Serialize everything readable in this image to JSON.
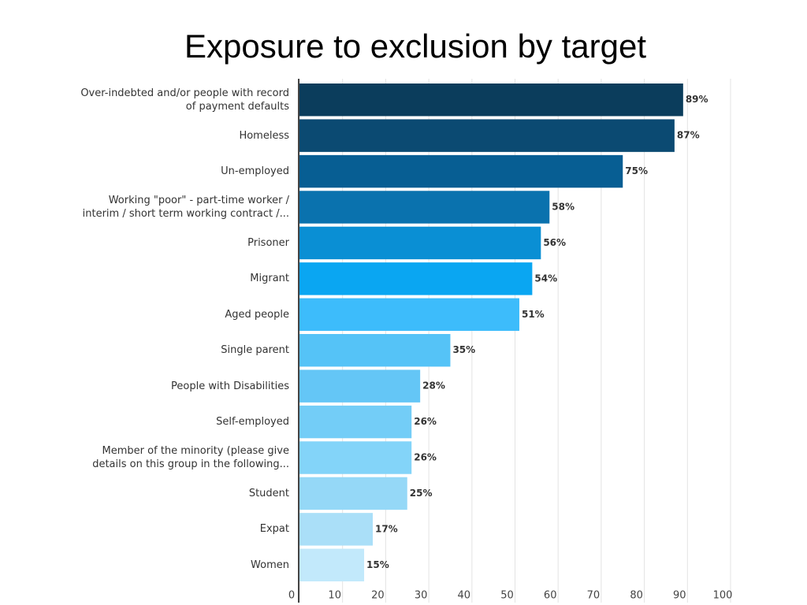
{
  "chart_data": {
    "type": "bar",
    "orientation": "horizontal",
    "title": "Exposure to exclusion by target",
    "categories": [
      "Over-indebted and/or people with record\nof payment defaults",
      "Homeless",
      "Un-employed",
      "Working \"poor\" - part-time worker /\ninterim / short term working contract /...",
      "Prisoner",
      "Migrant",
      "Aged people",
      "Single parent",
      "People with Disabilities",
      "Self-employed",
      "Member of the minority (please give\ndetails on this group in the following...",
      "Student",
      "Expat",
      "Women"
    ],
    "values": [
      89,
      87,
      75,
      58,
      56,
      54,
      51,
      35,
      28,
      26,
      26,
      25,
      17,
      15
    ],
    "value_labels": [
      "89%",
      "87%",
      "75%",
      "58%",
      "56%",
      "54%",
      "51%",
      "35%",
      "28%",
      "26%",
      "26%",
      "25%",
      "17%",
      "15%"
    ],
    "colors": [
      "#0b3d5c",
      "#0b4a72",
      "#075e93",
      "#0a72ae",
      "#0a8fd4",
      "#0aa6f2",
      "#3dbcfb",
      "#55c3f7",
      "#64c6f6",
      "#73cdf7",
      "#83d4f9",
      "#95d8f7",
      "#aadff8",
      "#c2e9fb"
    ],
    "xlim": [
      0,
      100
    ],
    "xticks": [
      0,
      10,
      20,
      30,
      40,
      50,
      60,
      70,
      80,
      90,
      100
    ],
    "grid": true
  }
}
